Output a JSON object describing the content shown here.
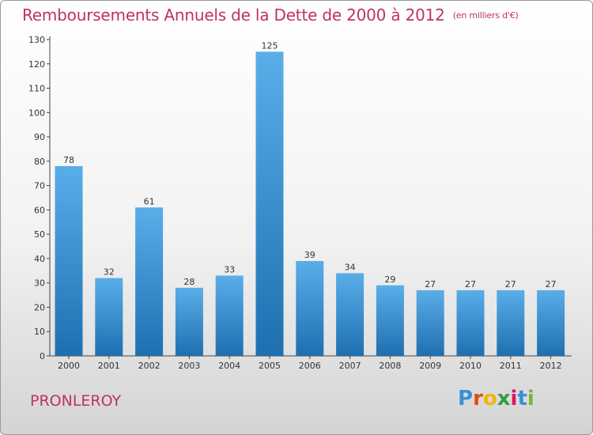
{
  "title": "Remboursements Annuels de la Dette de 2000 à 2012",
  "unit": "(en milliers d'€)",
  "commune": "PRONLEROY",
  "logo": {
    "letters": [
      "P",
      "r",
      "o",
      "x",
      "i",
      "t",
      "i"
    ],
    "colors": [
      "#3b8fd6",
      "#e64a19",
      "#f2b705",
      "#2e9e3f",
      "#d81b60",
      "#3b8fd6",
      "#7cb342"
    ]
  },
  "colors": {
    "bar_top": "#5aaee8",
    "bar_bottom": "#1e6fb0",
    "title": "#c0306a"
  },
  "chart_data": {
    "type": "bar",
    "categories": [
      "2000",
      "2001",
      "2002",
      "2003",
      "2004",
      "2005",
      "2006",
      "2007",
      "2008",
      "2009",
      "2010",
      "2011",
      "2012"
    ],
    "values": [
      78,
      32,
      61,
      28,
      33,
      125,
      39,
      34,
      29,
      27,
      27,
      27,
      27
    ],
    "title": "Remboursements Annuels de la Dette de 2000 à 2012",
    "xlabel": "",
    "ylabel": "",
    "ylim": [
      0,
      130
    ],
    "yticks": [
      0,
      10,
      20,
      30,
      40,
      50,
      60,
      70,
      80,
      90,
      100,
      110,
      120,
      130
    ],
    "grid": false,
    "data_labels": true
  }
}
